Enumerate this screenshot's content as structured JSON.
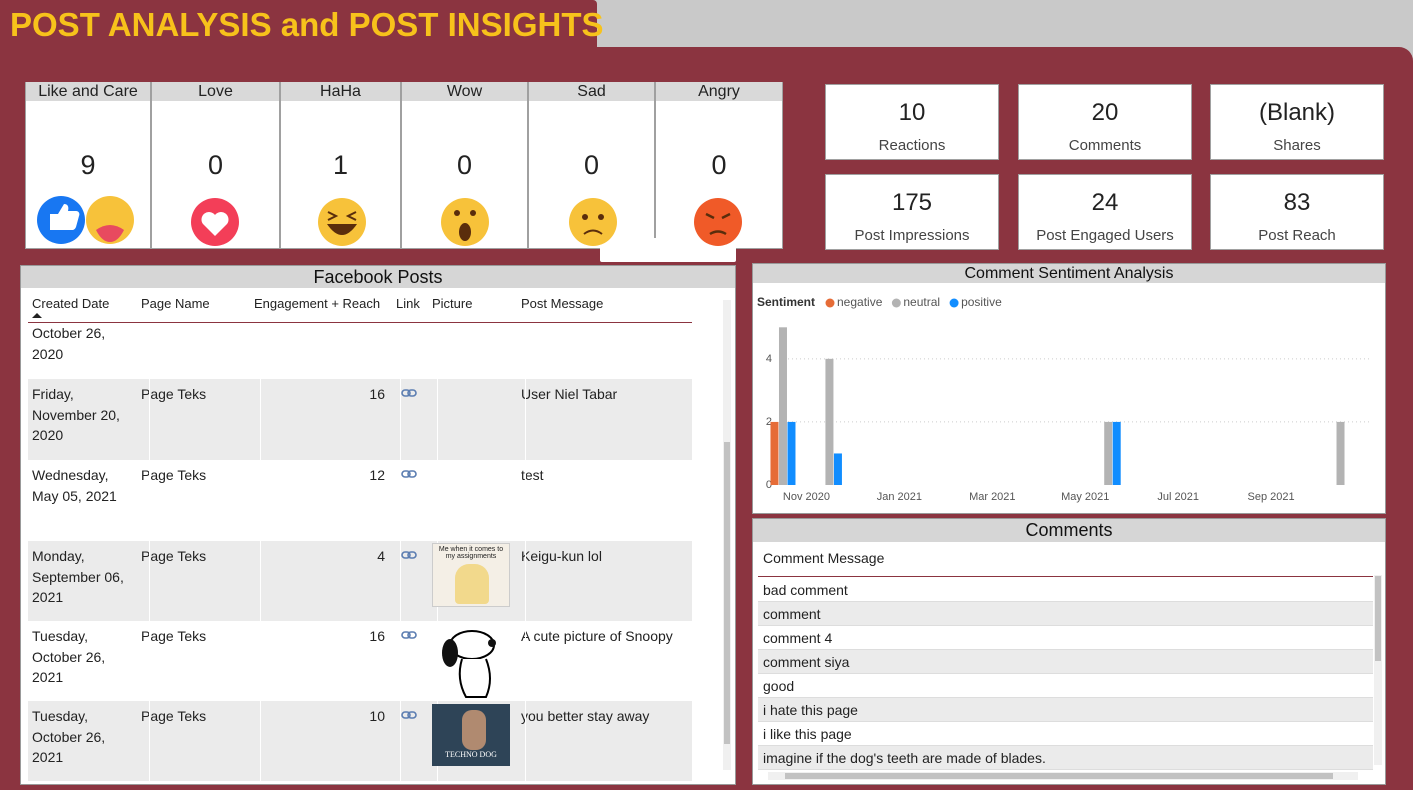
{
  "header": {
    "title": "POST ANALYSIS and POST INSIGHTS"
  },
  "reactions": [
    {
      "label": "Like and Care",
      "count": 9
    },
    {
      "label": "Love",
      "count": 0
    },
    {
      "label": "HaHa",
      "count": 1
    },
    {
      "label": "Wow",
      "count": 0
    },
    {
      "label": "Sad",
      "count": 0
    },
    {
      "label": "Angry",
      "count": 0
    }
  ],
  "kpis": [
    {
      "value": 10,
      "label": "Reactions"
    },
    {
      "value": 20,
      "label": "Comments"
    },
    {
      "value": "(Blank)",
      "label": "Shares"
    },
    {
      "value": 175,
      "label": "Post Impressions"
    },
    {
      "value": 24,
      "label": "Post Engaged Users"
    },
    {
      "value": 83,
      "label": "Post Reach"
    }
  ],
  "posts": {
    "title": "Facebook Posts",
    "columns": [
      "Created Date",
      "Page Name",
      "Engagement + Reach",
      "Link",
      "Picture",
      "Post Message"
    ],
    "rows": [
      {
        "date": "October 26, 2020"
      },
      {
        "date": "Friday, November 20, 2020",
        "page": "Page Teks",
        "engagement": 16,
        "message": "User Niel Tabar"
      },
      {
        "date": "Wednesday, May 05, 2021",
        "page": "Page Teks",
        "engagement": 12,
        "message": "test"
      },
      {
        "date": "Monday, September 06, 2021",
        "page": "Page Teks",
        "engagement": 4,
        "picture_text": "Me when it comes to my assignments",
        "message": "Keigu-kun lol"
      },
      {
        "date": "Tuesday, October 26, 2021",
        "page": "Page Teks",
        "engagement": 16,
        "message": "A cute picture of Snoopy"
      },
      {
        "date": "Tuesday, October 26, 2021",
        "page": "Page Teks",
        "engagement": 10,
        "picture_text": "TECHNO DOG",
        "message": "you better stay away"
      }
    ]
  },
  "chart_data": {
    "type": "bar",
    "title": "Comment Sentiment Analysis",
    "legend_title": "Sentiment",
    "legend": "top-left",
    "x": [
      "2020-10",
      "2020-11",
      "2021-05",
      "2021-10"
    ],
    "series": [
      {
        "name": "negative",
        "color": "#e66c37",
        "values": [
          2,
          null,
          null,
          null
        ]
      },
      {
        "name": "neutral",
        "color": "#b3b3b3",
        "values": [
          5,
          4,
          2,
          2
        ]
      },
      {
        "name": "positive",
        "color": "#118dff",
        "values": [
          2,
          1,
          2,
          null
        ]
      }
    ],
    "xlim": [
      "2020-10",
      "2021-11"
    ],
    "xticks": [
      {
        "value": "2020-11",
        "label": "Nov 2020"
      },
      {
        "value": "2021-01",
        "label": "Jan 2021"
      },
      {
        "value": "2021-03",
        "label": "Mar 2021"
      },
      {
        "value": "2021-05",
        "label": "May 2021"
      },
      {
        "value": "2021-07",
        "label": "Jul 2021"
      },
      {
        "value": "2021-09",
        "label": "Sep 2021"
      }
    ],
    "ylim": [
      0,
      5.2
    ],
    "yticks": [
      0,
      2,
      4
    ],
    "grid": true
  },
  "comments": {
    "title": "Comments",
    "column": "Comment Message",
    "rows": [
      "bad comment",
      "comment",
      "comment 4",
      "comment siya",
      "good",
      "i hate this page",
      "i like this page",
      "imagine if the dog's teeth are made of blades."
    ]
  }
}
